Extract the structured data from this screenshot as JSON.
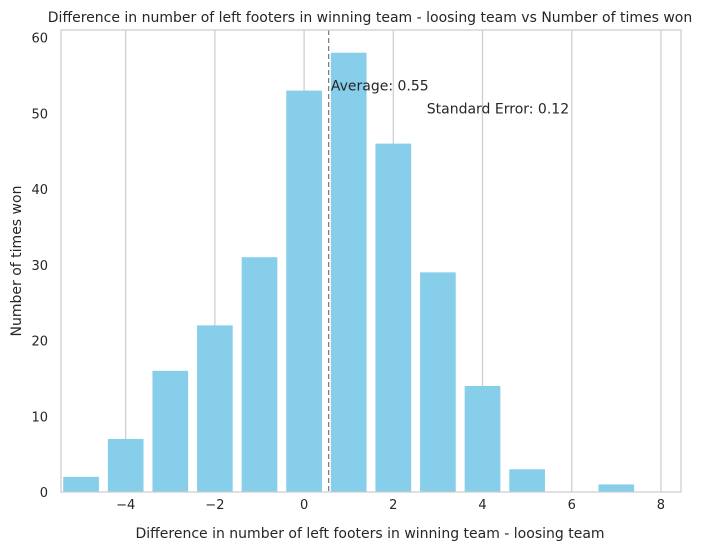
{
  "chart_data": {
    "type": "bar",
    "title": "Difference in number of left footers in winning team - loosing team vs Number of times won",
    "xlabel": "Difference in number of left footers in winning team - loosing team",
    "ylabel": "Number of times won",
    "x": [
      -5,
      -4,
      -3,
      -2,
      -1,
      0,
      1,
      2,
      3,
      4,
      5,
      6,
      7,
      8
    ],
    "values": [
      2,
      7,
      16,
      22,
      31,
      53,
      58,
      46,
      29,
      14,
      3,
      0,
      1,
      0
    ],
    "xlim": [
      -5.45,
      8.45
    ],
    "ylim": [
      0,
      61
    ],
    "xticks": [
      -4,
      -2,
      0,
      2,
      4,
      6,
      8
    ],
    "xtick_labels": [
      "−4",
      "−2",
      "0",
      "2",
      "4",
      "6",
      "8"
    ],
    "yticks": [
      0,
      10,
      20,
      30,
      40,
      50,
      60
    ],
    "ytick_labels": [
      "0",
      "10",
      "20",
      "30",
      "40",
      "50",
      "60"
    ],
    "grid": "vertical",
    "bar_color": "#87CEEB",
    "average_line": {
      "x": 0.55,
      "color": "#808080",
      "style": "dashed"
    },
    "annotations": [
      {
        "text": "Average: 0.55",
        "x": 0.6,
        "y": 53
      },
      {
        "text": "Standard Error: 0.12",
        "x": 2.75,
        "y": 50
      }
    ]
  }
}
